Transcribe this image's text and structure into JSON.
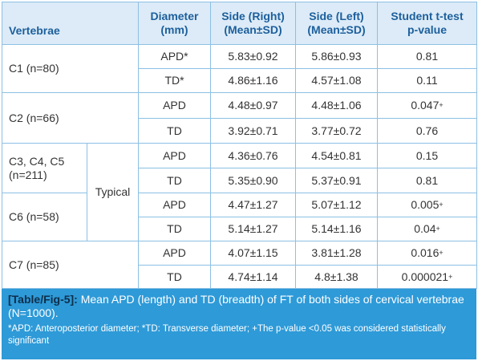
{
  "table": {
    "headers": [
      "Vertebrae",
      "Diameter\n(mm)",
      "Side (Right)\n(Mean±SD)",
      "Side (Left)\n(Mean±SD)",
      "Student t-test\np-value"
    ],
    "group_label": "Typical",
    "rows": [
      {
        "vertebra": "C1 (n=80)",
        "measures": [
          {
            "diameter": "APD*",
            "right": "5.83±0.92",
            "left": "5.86±0.93",
            "p": "0.81"
          },
          {
            "diameter": "TD*",
            "right": "4.86±1.16",
            "left": "4.57±1.08",
            "p": "0.11"
          }
        ]
      },
      {
        "vertebra": "C2 (n=66)",
        "measures": [
          {
            "diameter": "APD",
            "right": "4.48±0.97",
            "left": "4.48±1.06",
            "p": "0.047",
            "p_mark": "+"
          },
          {
            "diameter": "TD",
            "right": "3.92±0.71",
            "left": "3.77±0.72",
            "p": "0.76"
          }
        ]
      },
      {
        "vertebra": "C3, C4, C5\n(n=211)",
        "measures": [
          {
            "diameter": "APD",
            "right": "4.36±0.76",
            "left": "4.54±0.81",
            "p": "0.15"
          },
          {
            "diameter": "TD",
            "right": "5.35±0.90",
            "left": "5.37±0.91",
            "p": "0.81"
          }
        ]
      },
      {
        "vertebra": "C6 (n=58)",
        "measures": [
          {
            "diameter": "APD",
            "right": "4.47±1.27",
            "left": "5.07±1.12",
            "p": "0.005",
            "p_mark": "+"
          },
          {
            "diameter": "TD",
            "right": "5.14±1.27",
            "left": "5.14±1.16",
            "p": "0.04",
            "p_mark": "+"
          }
        ]
      },
      {
        "vertebra": "C7 (n=85)",
        "measures": [
          {
            "diameter": "APD",
            "right": "4.07±1.15",
            "left": "3.81±1.28",
            "p": "0.016",
            "p_mark": "+"
          },
          {
            "diameter": "TD",
            "right": "4.74±1.14",
            "left": "4.8±1.38",
            "p": "0.000021",
            "p_mark": "+"
          }
        ]
      }
    ]
  },
  "caption": {
    "label": "[Table/Fig-5]:",
    "text": "Mean APD (length) and TD (breadth) of FT of both sides of cervical vertebrae (N=1000).",
    "note": "*APD: Anteroposterior diameter; *TD: Transverse diameter; +The p-value <0.05 was considered statistically significant"
  }
}
